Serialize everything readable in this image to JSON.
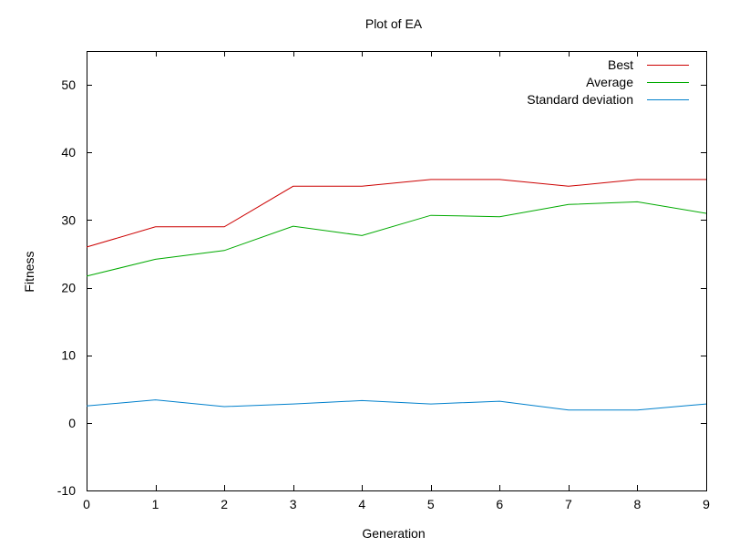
{
  "chart_data": {
    "type": "line",
    "title": "Plot of EA",
    "xlabel": "Generation",
    "ylabel": "Fitness",
    "xlim": [
      0,
      9
    ],
    "ylim": [
      -10,
      55
    ],
    "xticks": [
      0,
      1,
      2,
      3,
      4,
      5,
      6,
      7,
      8,
      9
    ],
    "yticks": [
      -10,
      0,
      10,
      20,
      30,
      40,
      50
    ],
    "grid": false,
    "legend_position": "top-right",
    "x": [
      0,
      1,
      2,
      3,
      4,
      5,
      6,
      7,
      8,
      9
    ],
    "series": [
      {
        "name": "Best",
        "color": "#cc0000",
        "values": [
          26,
          29,
          29,
          35,
          35,
          36,
          36,
          35,
          36,
          36
        ]
      },
      {
        "name": "Average",
        "color": "#00aa00",
        "values": [
          21.7,
          24.2,
          25.5,
          29.1,
          27.7,
          30.7,
          30.5,
          32.3,
          32.7,
          31.0
        ]
      },
      {
        "name": "Standard deviation",
        "color": "#0080cc",
        "values": [
          2.5,
          3.4,
          2.4,
          2.8,
          3.3,
          2.8,
          3.2,
          1.9,
          1.9,
          2.8
        ]
      }
    ]
  }
}
